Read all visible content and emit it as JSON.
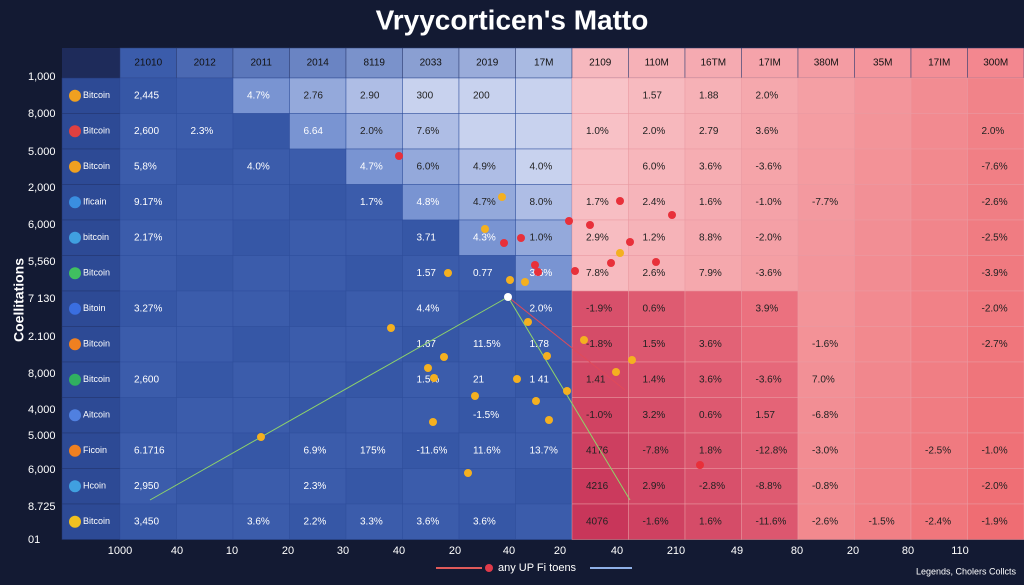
{
  "title": "Vryycorticen's Matto",
  "axis_label": "Coellitations",
  "row_axis": [
    "1,000",
    "8,000",
    "5.000",
    "2,000",
    "6,000",
    "5,560",
    "7 130",
    "2.100",
    "8,000",
    "4,000",
    "5.000",
    "6,000",
    "8.725",
    "01"
  ],
  "header": [
    "21010",
    "2012",
    "2011",
    "2014",
    "8119",
    "2033",
    "2019",
    "17M",
    "2109",
    "110M",
    "16TM",
    "17IM",
    "380M",
    "35M",
    "17IM",
    "300M"
  ],
  "rows": [
    {
      "name": "Bitcoin",
      "cells": [
        "2,445",
        null,
        "4.7%",
        "2.76",
        "2.90",
        "300",
        "200",
        null,
        null,
        "1.57",
        "1.88",
        "2.0%",
        null,
        null,
        null,
        null
      ]
    },
    {
      "name": "Bitcoin",
      "cells": [
        "2,600",
        "2.3%",
        null,
        "6.64",
        "2.0%",
        "7.6%",
        null,
        null,
        "1.0%",
        "2.0%",
        "2.79",
        "3.6%",
        null,
        null,
        null,
        "2.0%"
      ]
    },
    {
      "name": "Bitcoin",
      "cells": [
        "5,8%",
        null,
        "4.0%",
        null,
        "4.7%",
        "6.0%",
        "4.9%",
        "4.0%",
        null,
        "6.0%",
        "3.6%",
        "-3.6%",
        null,
        null,
        null,
        "-7.6%"
      ]
    },
    {
      "name": "Ificain",
      "cells": [
        "9.17%",
        null,
        null,
        null,
        "1.7%",
        "4.8%",
        "4.7%",
        "8.0%",
        "1.7%",
        "2.4%",
        "1.6%",
        "-1.0%",
        "-7.7%",
        null,
        null,
        "-2.6%"
      ]
    },
    {
      "name": "bitcoin",
      "cells": [
        "2.17%",
        null,
        null,
        null,
        null,
        "3.71",
        "4.3%",
        "1.0%",
        "2.9%",
        "1.2%",
        "8.8%",
        "-2.0%",
        null,
        null,
        null,
        "-2.5%"
      ]
    },
    {
      "name": "Bitcoin",
      "cells": [
        null,
        null,
        null,
        null,
        null,
        "1.57",
        "0.77",
        "3.6%",
        "7.8%",
        "2.6%",
        "7.9%",
        "-3.6%",
        null,
        null,
        null,
        "-3.9%"
      ]
    },
    {
      "name": "Bitoin",
      "cells": [
        "3.27%",
        null,
        null,
        null,
        null,
        "4.4%",
        null,
        "2.0%",
        "-1.9%",
        "0.6%",
        null,
        "3.9%",
        null,
        null,
        null,
        "-2.0%"
      ]
    },
    {
      "name": "Bitcoin",
      "cells": [
        null,
        null,
        null,
        null,
        null,
        "1.67",
        "11.5%",
        "1.78",
        "-1.8%",
        "1.5%",
        "3.6%",
        null,
        "-1.6%",
        null,
        null,
        "-2.7%"
      ]
    },
    {
      "name": "Bitcoin",
      "cells": [
        "2,600",
        null,
        null,
        null,
        null,
        "1.5%",
        "21",
        "1 41",
        "1.41",
        "1.4%",
        "3.6%",
        "-3.6%",
        "7.0%",
        null,
        null,
        null
      ]
    },
    {
      "name": "Aitcoin",
      "cells": [
        null,
        null,
        null,
        null,
        null,
        null,
        "-1.5%",
        null,
        "-1.0%",
        "3.2%",
        "0.6%",
        "1.57",
        "-6.8%",
        null,
        null,
        null
      ]
    },
    {
      "name": "Ficoin",
      "cells": [
        "6.1716",
        null,
        null,
        "6.9%",
        "175%",
        "-11.6%",
        "11.6%",
        "13.7%",
        "4176",
        "-7.8%",
        "1.8%",
        "-12.8%",
        "-3.0%",
        null,
        "-2.5%",
        "-1.0%"
      ]
    },
    {
      "name": "Hcoin",
      "cells": [
        "2,950",
        null,
        null,
        "2.3%",
        null,
        null,
        null,
        null,
        "4216",
        "2.9%",
        "-2.8%",
        "-8.8%",
        "-0.8%",
        null,
        null,
        "-2.0%"
      ]
    },
    {
      "name": "Bitcoin",
      "cells": [
        "3,450",
        null,
        "3.6%",
        "2.2%",
        "3.3%",
        "3.6%",
        "3.6%",
        null,
        "4076",
        "-1.6%",
        "1.6%",
        "-11.6%",
        "-2.6%",
        "-1.5%",
        "-2.4%",
        "-1.9%"
      ]
    }
  ],
  "x_axis": [
    "1000",
    "40",
    "10",
    "20",
    "30",
    "40",
    "20",
    "40",
    "20",
    "40",
    "210",
    "49",
    "80",
    "20",
    "80",
    "110"
  ],
  "legend": "any UP Fi toens",
  "footer": "Legends, Cholers Collcts"
}
